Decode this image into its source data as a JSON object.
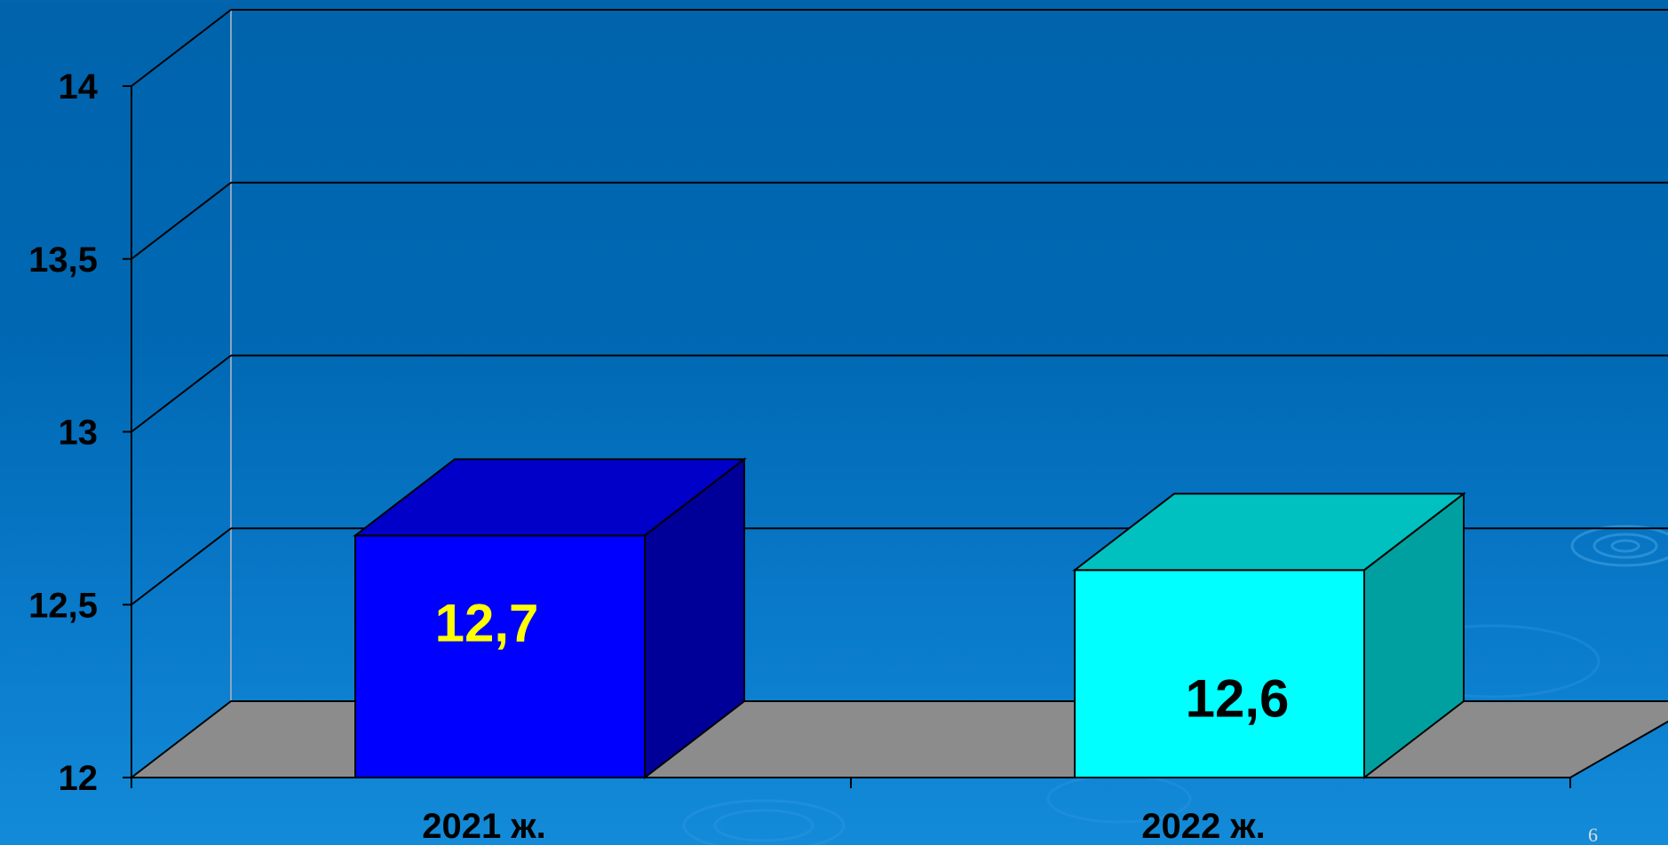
{
  "chart_data": {
    "type": "bar",
    "categories": [
      "2021 ж.",
      "2022 ж."
    ],
    "values": [
      12.7,
      12.6
    ],
    "data_labels": [
      "12,7",
      "12,6"
    ],
    "bar_colors": {
      "front": [
        "#0000ff",
        "#00ffff"
      ],
      "top": [
        "#0000c8",
        "#00c0c0"
      ],
      "side": [
        "#000099",
        "#00a0a0"
      ]
    },
    "label_colors": [
      "#ffff00",
      "#000000"
    ],
    "ylim": [
      12,
      14
    ],
    "yticks": [
      12,
      12.5,
      13,
      13.5,
      14
    ],
    "ytick_labels": [
      "12",
      "12,5",
      "13",
      "13,5",
      "14"
    ],
    "title": "",
    "xlabel": "",
    "ylabel": "",
    "grid": true,
    "three_d": true,
    "floor_color": "#8c8c8c"
  },
  "page_number": "6"
}
